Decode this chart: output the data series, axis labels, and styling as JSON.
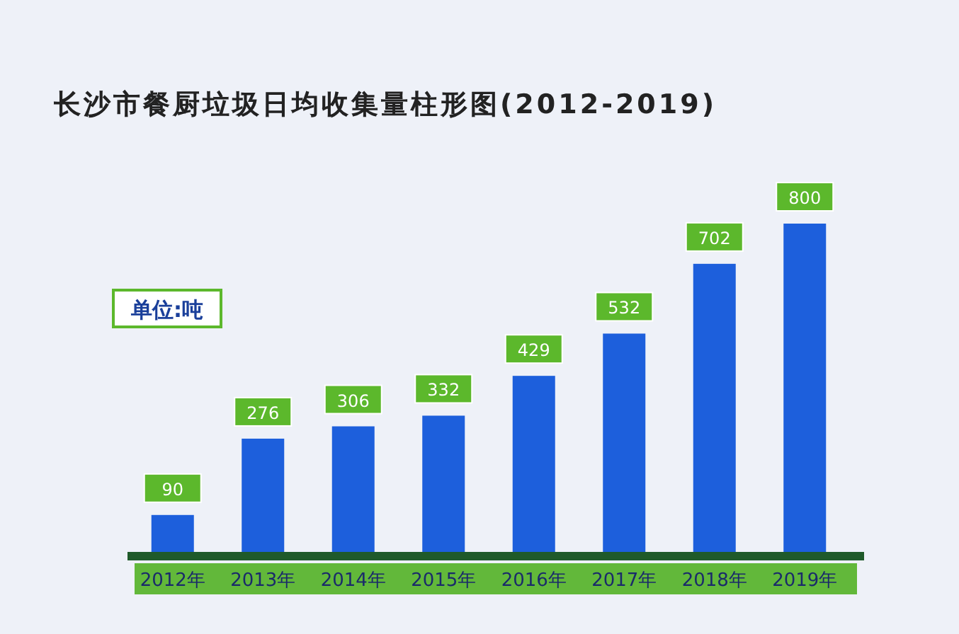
{
  "chart_data": {
    "type": "bar",
    "title": "长沙市餐厨垃圾日均收集量柱形图(2012-2019)",
    "ylabel": "单位:吨",
    "categories": [
      "2012年",
      "2013年",
      "2014年",
      "2015年",
      "2016年",
      "2017年",
      "2018年",
      "2019年"
    ],
    "values": [
      90,
      276,
      306,
      332,
      429,
      532,
      702,
      800
    ],
    "color": "#1d5fdc",
    "data_labels": true
  }
}
